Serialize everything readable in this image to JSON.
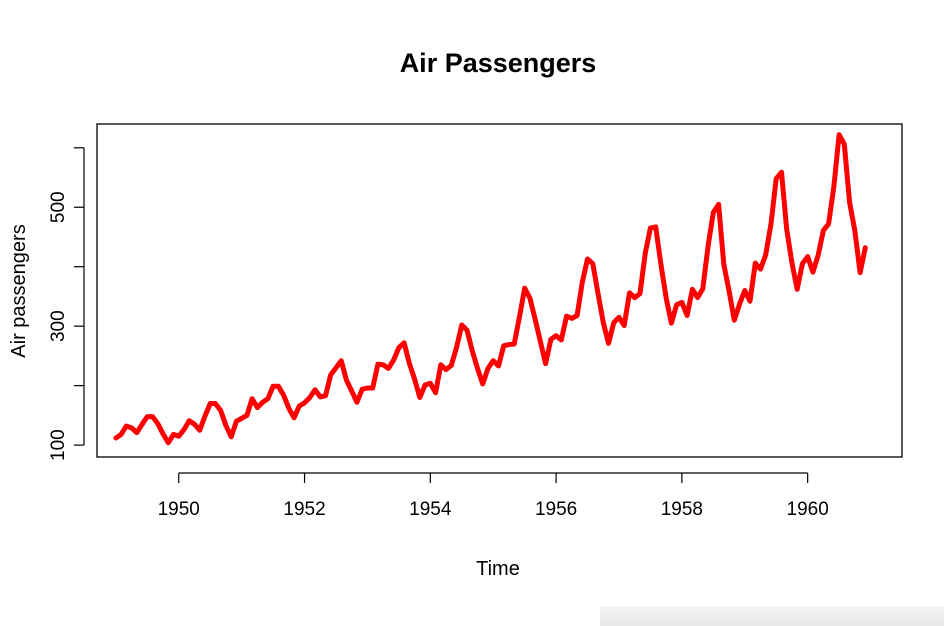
{
  "chart_data": {
    "type": "line",
    "title": "Air Passengers",
    "xlabel": "Time",
    "ylabel": "Air passengers",
    "xlim": [
      1948.7,
      1961.5
    ],
    "ylim": [
      80,
      640
    ],
    "x_ticks": [
      1950,
      1952,
      1954,
      1956,
      1958,
      1960
    ],
    "y_ticks": [
      100,
      200,
      300,
      400,
      500,
      600
    ],
    "y_tick_labels": [
      "100",
      "",
      "300",
      "",
      "500",
      ""
    ],
    "x_start": 1949,
    "x_step": 0.0833333,
    "line_color": "#ff0000",
    "series": [
      {
        "values": [
          112,
          118,
          132,
          129,
          121,
          135,
          148,
          148,
          136,
          119,
          104,
          118,
          115,
          126,
          141,
          135,
          125,
          149,
          170,
          170,
          158,
          133,
          114,
          140,
          145,
          150,
          178,
          163,
          172,
          178,
          199,
          199,
          184,
          162,
          146,
          166,
          171,
          180,
          193,
          181,
          183,
          218,
          230,
          242,
          209,
          191,
          172,
          194,
          196,
          196,
          236,
          235,
          229,
          243,
          264,
          272,
          237,
          211,
          180,
          201,
          204,
          188,
          235,
          227,
          234,
          264,
          302,
          293,
          259,
          229,
          203,
          229,
          242,
          233,
          267,
          269,
          270,
          315,
          364,
          347,
          312,
          274,
          237,
          278,
          284,
          277,
          317,
          313,
          318,
          374,
          413,
          405,
          355,
          306,
          271,
          306,
          315,
          301,
          356,
          348,
          355,
          422,
          465,
          467,
          404,
          347,
          305,
          336,
          340,
          318,
          362,
          348,
          363,
          435,
          491,
          505,
          404,
          359,
          310,
          337,
          360,
          342,
          406,
          396,
          420,
          472,
          548,
          559,
          463,
          407,
          362,
          405,
          417,
          391,
          419,
          461,
          472,
          535,
          622,
          606,
          508,
          461,
          390,
          432
        ]
      }
    ]
  }
}
